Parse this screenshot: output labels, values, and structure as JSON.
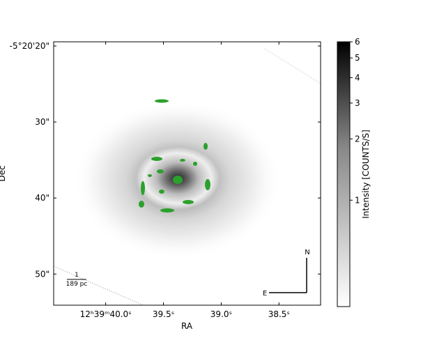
{
  "chart_data": {
    "type": "image",
    "x_label": "RA",
    "y_label": "Dec",
    "xlim": [
      40.45,
      38.14
    ],
    "xticks": [
      {
        "value": 40.0,
        "label": "12ʰ39ᵐ40.0ˢ"
      },
      {
        "value": 39.5,
        "label": "39.5ˢ"
      },
      {
        "value": 39.0,
        "label": "39.0ˢ"
      },
      {
        "value": 38.5,
        "label": "38.5ˢ"
      }
    ],
    "ylim": [
      54.1,
      19.45
    ],
    "yticks": [
      {
        "value": 20,
        "label": "-5°20'20\""
      },
      {
        "value": 30,
        "label": "30\""
      },
      {
        "value": 40,
        "label": "40\""
      },
      {
        "value": 50,
        "label": "50\""
      }
    ],
    "colorbar": {
      "label": "Intensity [COUNTS/S]",
      "log_scale": true,
      "lim": [
        0.3,
        6
      ],
      "ticks": [
        1,
        2,
        3,
        4,
        5,
        6
      ]
    },
    "scale_bar": {
      "top": "1",
      "bottom": "189 pc"
    },
    "compass": {
      "north": "N",
      "east": "E"
    }
  }
}
